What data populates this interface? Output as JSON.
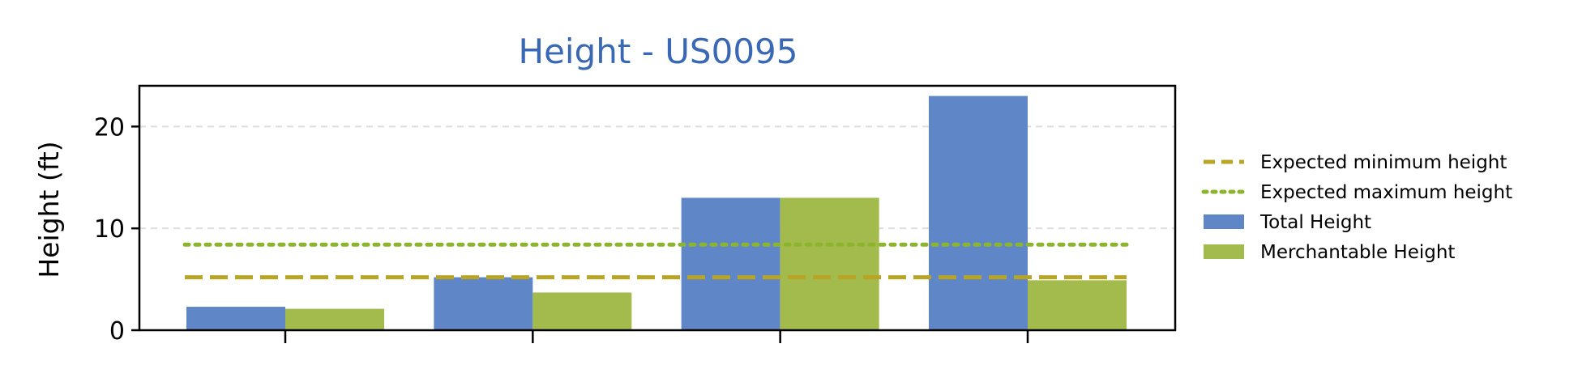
{
  "chart_data": {
    "type": "bar",
    "title": "Height - US0095",
    "xlabel": "",
    "ylabel": "Height (ft)",
    "categories": [
      "",
      "",
      "",
      ""
    ],
    "ylim": [
      0,
      24
    ],
    "yticks": [
      0,
      10,
      20
    ],
    "grid": true,
    "legend_position": "right",
    "series": [
      {
        "name": "Total Height",
        "color": "#5f86c6",
        "values": [
          2.3,
          5.2,
          13.0,
          23.0
        ]
      },
      {
        "name": "Merchantable Height",
        "color": "#a2bb4c",
        "values": [
          2.1,
          3.7,
          13.0,
          4.9
        ]
      }
    ],
    "reference_lines": [
      {
        "name": "Expected minimum height",
        "value": 5.2,
        "style": "dashed",
        "color": "#b8a425"
      },
      {
        "name": "Expected maximum height",
        "value": 8.4,
        "style": "dotted",
        "color": "#8cb52e"
      }
    ],
    "title_color": "#3a68b5"
  }
}
